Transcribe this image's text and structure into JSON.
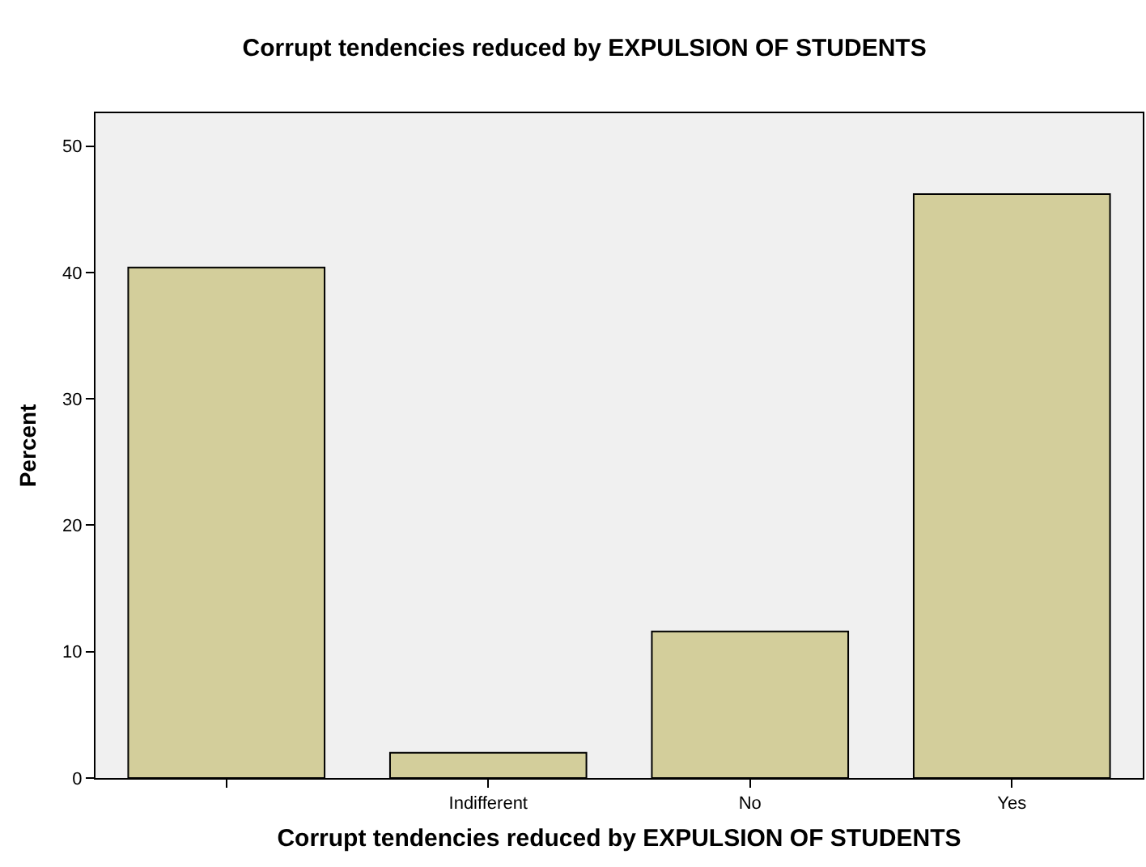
{
  "chart_data": {
    "type": "bar",
    "title": "Corrupt tendencies reduced by EXPULSION OF STUDENTS",
    "xlabel": "Corrupt tendencies reduced by EXPULSION OF STUDENTS",
    "ylabel": "Percent",
    "categories": [
      null,
      "Indifferent",
      "No",
      "Yes"
    ],
    "values": [
      40.4,
      2.0,
      11.6,
      46.2
    ],
    "color": "#d3ce9b",
    "ylim": [
      0,
      52.6
    ],
    "yticks": [
      0,
      10,
      20,
      30,
      40,
      50
    ],
    "grid": false
  }
}
